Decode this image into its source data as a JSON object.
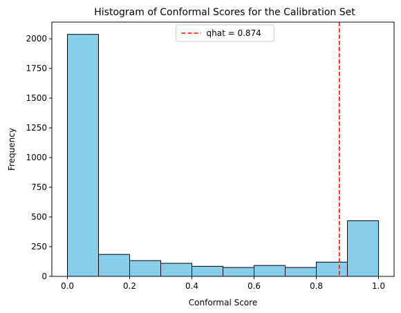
{
  "chart_data": {
    "type": "bar",
    "title": "Histogram of Conformal Scores for the Calibration Set",
    "xlabel": "Conformal Score",
    "ylabel": "Frequency",
    "xlim": [
      -0.05,
      1.05
    ],
    "ylim": [
      0,
      2140
    ],
    "bin_edges": [
      0.0,
      0.1,
      0.2,
      0.3,
      0.4,
      0.5,
      0.6,
      0.7,
      0.8,
      0.9,
      1.0
    ],
    "values": [
      2037,
      185,
      133,
      110,
      85,
      75,
      92,
      75,
      120,
      468
    ],
    "x_ticks": [
      0.0,
      0.2,
      0.4,
      0.6,
      0.8,
      1.0
    ],
    "x_tick_labels": [
      "0.0",
      "0.2",
      "0.4",
      "0.6",
      "0.8",
      "1.0"
    ],
    "y_ticks": [
      0,
      250,
      500,
      750,
      1000,
      1250,
      1500,
      1750,
      2000
    ],
    "y_tick_labels": [
      "0",
      "250",
      "500",
      "750",
      "1000",
      "1250",
      "1500",
      "1750",
      "2000"
    ],
    "bar_color": "#87CEEB",
    "bar_edge_color": "#000000",
    "threshold": {
      "value": 0.874,
      "label": "qhat = 0.874",
      "color": "#FF0000",
      "style": "dashed"
    },
    "legend": {
      "position": "top-center"
    },
    "grid": false
  }
}
